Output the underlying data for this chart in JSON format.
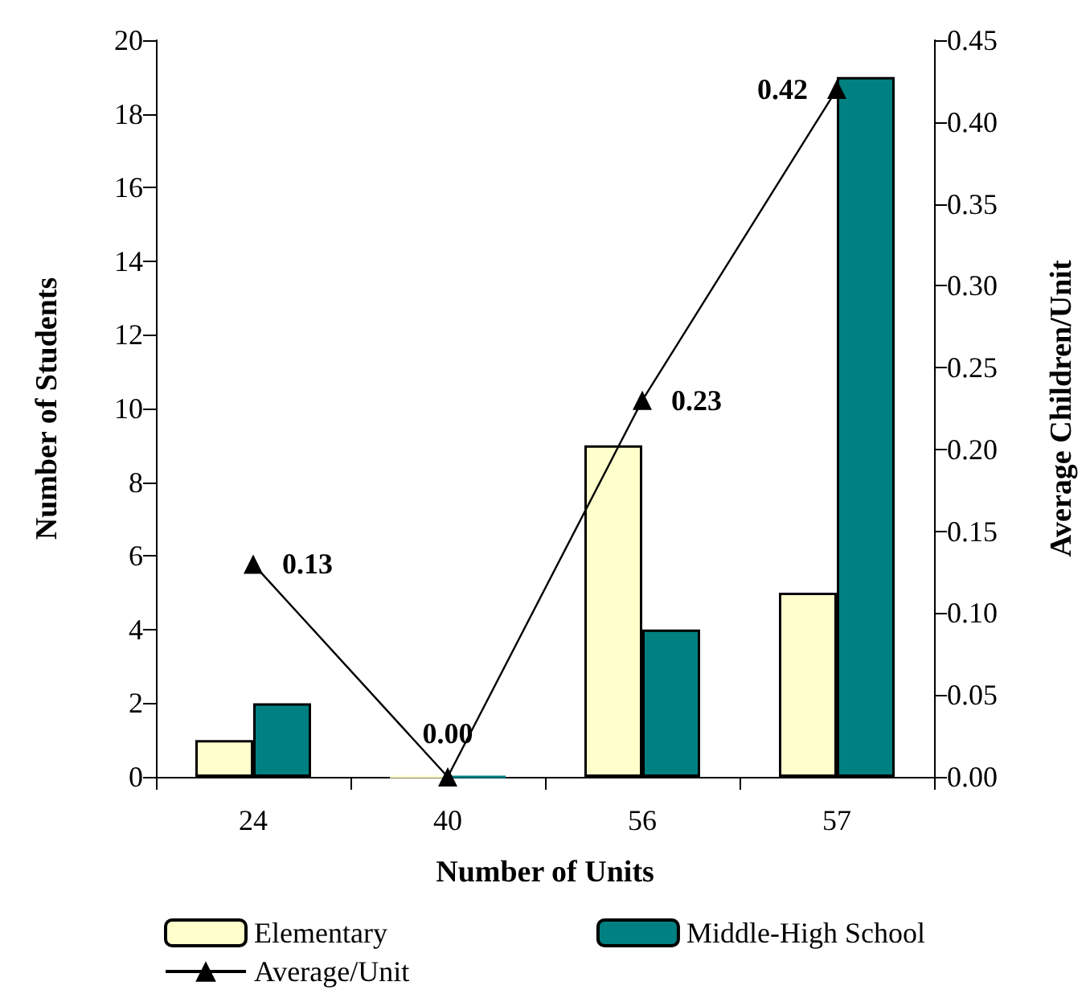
{
  "chart_data": {
    "type": "bar",
    "xlabel": "Number of Units",
    "ylabel": "Number of Students",
    "y2label": "Average Children/Unit",
    "categories": [
      "24",
      "40",
      "56",
      "57"
    ],
    "series": [
      {
        "name": "Elementary",
        "color": "#ffffcc",
        "values": [
          1,
          0,
          9,
          5
        ]
      },
      {
        "name": "Middle-High School",
        "color": "#008080",
        "values": [
          2,
          0,
          4,
          19
        ]
      },
      {
        "name": "Average/Unit",
        "type": "line",
        "axis": "y2",
        "color": "#000000",
        "values": [
          0.13,
          0.0,
          0.23,
          0.42
        ],
        "value_labels": [
          "0.13",
          "0.00",
          "0.23",
          "0.42"
        ],
        "marker": "triangle"
      }
    ],
    "ylim": [
      0,
      20
    ],
    "yticks": [
      0,
      2,
      4,
      6,
      8,
      10,
      12,
      14,
      16,
      18,
      20
    ],
    "y2lim": [
      0,
      0.45
    ],
    "y2ticks": [
      {
        "value": 0,
        "label": "0.00"
      },
      {
        "value": 0.05,
        "label": "0.05"
      },
      {
        "value": 0.1,
        "label": "0.10"
      },
      {
        "value": 0.15,
        "label": "0.15"
      },
      {
        "value": 0.2,
        "label": "0.20"
      },
      {
        "value": 0.25,
        "label": "0.25"
      },
      {
        "value": 0.3,
        "label": "0.30"
      },
      {
        "value": 0.35,
        "label": "0.35"
      },
      {
        "value": 0.4,
        "label": "0.40"
      },
      {
        "value": 0.45,
        "label": "0.45"
      }
    ],
    "grid": false,
    "legend": "bottom"
  }
}
